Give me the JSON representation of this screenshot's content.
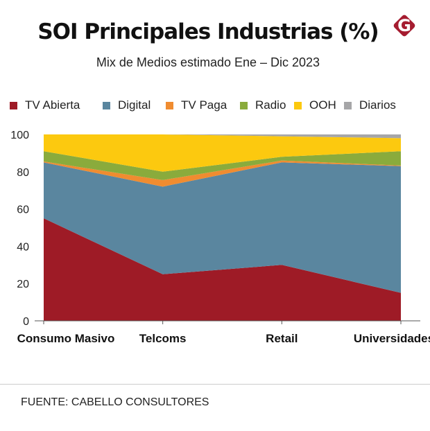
{
  "header": {
    "title": "SOI Principales Industrias (%)",
    "subtitle": "Mix de Medios estimado Ene – Dic 2023",
    "logo_letter": "G"
  },
  "colors": {
    "brand": "#a51c30"
  },
  "chart_data": {
    "type": "area",
    "stacked": true,
    "title": "SOI Principales Industrias (%)",
    "subtitle": "Mix de Medios estimado Ene – Dic 2023",
    "categories": [
      "Consumo Masivo",
      "Telcoms",
      "Retail",
      "Universidades"
    ],
    "series": [
      {
        "name": "TV Abierta",
        "color": "#9e1b26",
        "values": [
          55,
          25,
          30,
          15
        ]
      },
      {
        "name": "Digital",
        "color": "#5a869f",
        "values": [
          30,
          47,
          55,
          68
        ]
      },
      {
        "name": "TV Paga",
        "color": "#f08c30",
        "values": [
          0.5,
          3.5,
          1,
          0.3
        ]
      },
      {
        "name": "Radio",
        "color": "#8aab3c",
        "values": [
          5.5,
          4.5,
          2,
          7.7
        ]
      },
      {
        "name": "OOH",
        "color": "#fcc90f",
        "values": [
          9,
          20,
          11,
          7
        ]
      },
      {
        "name": "Diarios",
        "color": "#a6a6a8",
        "values": [
          0,
          0,
          1,
          2
        ]
      }
    ],
    "yticks": [
      0,
      20,
      40,
      60,
      80,
      100
    ],
    "ylim": [
      0,
      100
    ],
    "xlabel": "",
    "ylabel": "",
    "legend": "top",
    "grid": false
  },
  "footer": {
    "source": "FUENTE: CABELLO CONSULTORES"
  }
}
